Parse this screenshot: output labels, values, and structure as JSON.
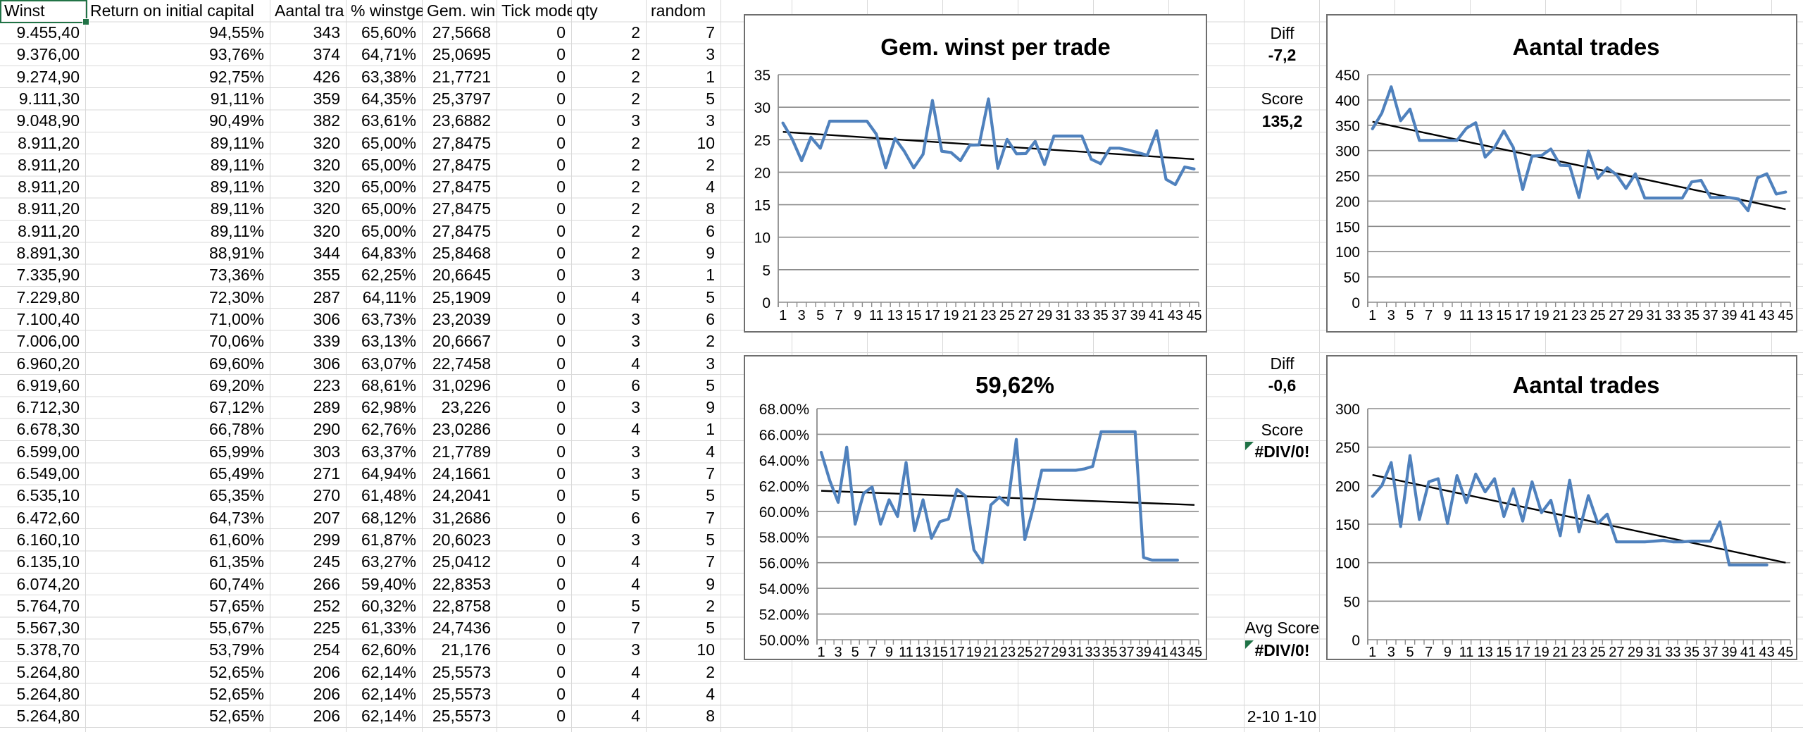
{
  "sheet": {
    "table": {
      "headers": [
        "Winst",
        "Return on initial capital",
        "Aantal tra",
        "% winstge",
        "Gem. win",
        "Tick mode",
        "qty",
        "random"
      ],
      "rows": [
        [
          "9.455,40",
          "94,55%",
          "343",
          "65,60%",
          "27,5668",
          "0",
          "2",
          "7"
        ],
        [
          "9.376,00",
          "93,76%",
          "374",
          "64,71%",
          "25,0695",
          "0",
          "2",
          "3"
        ],
        [
          "9.274,90",
          "92,75%",
          "426",
          "63,38%",
          "21,7721",
          "0",
          "2",
          "1"
        ],
        [
          "9.111,30",
          "91,11%",
          "359",
          "64,35%",
          "25,3797",
          "0",
          "2",
          "5"
        ],
        [
          "9.048,90",
          "90,49%",
          "382",
          "63,61%",
          "23,6882",
          "0",
          "3",
          "3"
        ],
        [
          "8.911,20",
          "89,11%",
          "320",
          "65,00%",
          "27,8475",
          "0",
          "2",
          "10"
        ],
        [
          "8.911,20",
          "89,11%",
          "320",
          "65,00%",
          "27,8475",
          "0",
          "2",
          "2"
        ],
        [
          "8.911,20",
          "89,11%",
          "320",
          "65,00%",
          "27,8475",
          "0",
          "2",
          "4"
        ],
        [
          "8.911,20",
          "89,11%",
          "320",
          "65,00%",
          "27,8475",
          "0",
          "2",
          "8"
        ],
        [
          "8.911,20",
          "89,11%",
          "320",
          "65,00%",
          "27,8475",
          "0",
          "2",
          "6"
        ],
        [
          "8.891,30",
          "88,91%",
          "344",
          "64,83%",
          "25,8468",
          "0",
          "2",
          "9"
        ],
        [
          "7.335,90",
          "73,36%",
          "355",
          "62,25%",
          "20,6645",
          "0",
          "3",
          "1"
        ],
        [
          "7.229,80",
          "72,30%",
          "287",
          "64,11%",
          "25,1909",
          "0",
          "4",
          "5"
        ],
        [
          "7.100,40",
          "71,00%",
          "306",
          "63,73%",
          "23,2039",
          "0",
          "3",
          "6"
        ],
        [
          "7.006,00",
          "70,06%",
          "339",
          "63,13%",
          "20,6667",
          "0",
          "3",
          "2"
        ],
        [
          "6.960,20",
          "69,60%",
          "306",
          "63,07%",
          "22,7458",
          "0",
          "4",
          "3"
        ],
        [
          "6.919,60",
          "69,20%",
          "223",
          "68,61%",
          "31,0296",
          "0",
          "6",
          "5"
        ],
        [
          "6.712,30",
          "67,12%",
          "289",
          "62,98%",
          "23,226",
          "0",
          "3",
          "9"
        ],
        [
          "6.678,30",
          "66,78%",
          "290",
          "62,76%",
          "23,0286",
          "0",
          "4",
          "1"
        ],
        [
          "6.599,00",
          "65,99%",
          "303",
          "63,37%",
          "21,7789",
          "0",
          "3",
          "4"
        ],
        [
          "6.549,00",
          "65,49%",
          "271",
          "64,94%",
          "24,1661",
          "0",
          "3",
          "7"
        ],
        [
          "6.535,10",
          "65,35%",
          "270",
          "61,48%",
          "24,2041",
          "0",
          "5",
          "5"
        ],
        [
          "6.472,60",
          "64,73%",
          "207",
          "68,12%",
          "31,2686",
          "0",
          "6",
          "7"
        ],
        [
          "6.160,10",
          "61,60%",
          "299",
          "61,87%",
          "20,6023",
          "0",
          "3",
          "5"
        ],
        [
          "6.135,10",
          "61,35%",
          "245",
          "63,27%",
          "25,0412",
          "0",
          "4",
          "7"
        ],
        [
          "6.074,20",
          "60,74%",
          "266",
          "59,40%",
          "22,8353",
          "0",
          "4",
          "9"
        ],
        [
          "5.764,70",
          "57,65%",
          "252",
          "60,32%",
          "22,8758",
          "0",
          "5",
          "2"
        ],
        [
          "5.567,30",
          "55,67%",
          "225",
          "61,33%",
          "24,7436",
          "0",
          "7",
          "5"
        ],
        [
          "5.378,70",
          "53,79%",
          "254",
          "62,60%",
          "21,176",
          "0",
          "3",
          "10"
        ],
        [
          "5.264,80",
          "52,65%",
          "206",
          "62,14%",
          "25,5573",
          "0",
          "4",
          "2"
        ],
        [
          "5.264,80",
          "52,65%",
          "206",
          "62,14%",
          "25,5573",
          "0",
          "4",
          "4"
        ],
        [
          "5.264,80",
          "52,65%",
          "206",
          "62,14%",
          "25,5573",
          "0",
          "4",
          "8"
        ]
      ]
    },
    "side_panel": {
      "diff1_label": "Diff",
      "diff1_value": "-7,2",
      "score1_label": "Score",
      "score1_value": "135,2",
      "diff2_label": "Diff",
      "diff2_value": "-0,6",
      "score2_label": "Score",
      "score2_value": "#DIV/0!",
      "avg_score_label": "Avg Score",
      "avg_score_value": "#DIV/0!",
      "footer_note": "2-10 1-10"
    }
  },
  "colors": {
    "series_blue": "#4F81BD",
    "trend_black": "#000000",
    "chart_grid": "#8c8c8c",
    "sheet_grid": "#d9d9d9",
    "selection_green": "#217346",
    "error_flag_green": "#1e7145"
  },
  "chart_data": [
    {
      "type": "line",
      "title": "Gem. winst per trade",
      "position": "top-middle",
      "ylim": [
        0,
        35
      ],
      "y_tick_values": [
        35,
        30,
        25,
        20,
        15,
        10,
        5,
        0
      ],
      "y_tick_labels": [
        "35",
        "30",
        "25",
        "20",
        "15",
        "10",
        "5",
        "0"
      ],
      "x_count": 45,
      "x_labels": [
        "1",
        "3",
        "5",
        "7",
        "9",
        "11",
        "13",
        "15",
        "17",
        "19",
        "21",
        "23",
        "25",
        "27",
        "29",
        "31",
        "33",
        "35",
        "37",
        "39",
        "41",
        "43",
        "45"
      ],
      "values": [
        27.5668,
        25.0695,
        21.7721,
        25.3797,
        23.6882,
        27.8475,
        27.8475,
        27.8475,
        27.8475,
        27.8475,
        25.8468,
        20.6645,
        25.1909,
        23.2039,
        20.6667,
        22.7458,
        31.0296,
        23.226,
        23.0286,
        21.7789,
        24.1661,
        24.2041,
        31.2686,
        20.6023,
        25.0412,
        22.8353,
        22.8758,
        24.7436,
        21.176,
        25.5573,
        25.5573,
        25.5573,
        25.5573,
        22.0,
        21.3,
        23.7,
        23.7,
        23.4,
        23.0,
        22.6,
        26.4,
        18.9,
        18.1,
        20.8,
        20.5
      ],
      "trend": {
        "start": 26.2,
        "end": 22.0
      },
      "grid": true,
      "legend": "none"
    },
    {
      "type": "line",
      "title": "Aantal trades",
      "position": "top-right",
      "ylim": [
        0,
        450
      ],
      "y_tick_values": [
        450,
        400,
        350,
        300,
        250,
        200,
        150,
        100,
        50,
        0
      ],
      "y_tick_labels": [
        "450",
        "400",
        "350",
        "300",
        "250",
        "200",
        "150",
        "100",
        "50",
        "0"
      ],
      "x_count": 45,
      "x_labels": [
        "1",
        "3",
        "5",
        "7",
        "9",
        "11",
        "13",
        "15",
        "17",
        "19",
        "21",
        "23",
        "25",
        "27",
        "29",
        "31",
        "33",
        "35",
        "37",
        "39",
        "41",
        "43",
        "45"
      ],
      "values": [
        343,
        374,
        426,
        359,
        382,
        320,
        320,
        320,
        320,
        320,
        344,
        355,
        287,
        306,
        339,
        306,
        223,
        289,
        290,
        303,
        271,
        270,
        207,
        299,
        245,
        266,
        252,
        225,
        254,
        206,
        206,
        206,
        206,
        206,
        238,
        241,
        207,
        207,
        207,
        204,
        181,
        246,
        254,
        214,
        218
      ],
      "trend": {
        "start": 357,
        "end": 184
      },
      "grid": true,
      "legend": "none"
    },
    {
      "type": "line",
      "title": "59,62%",
      "position": "bottom-middle",
      "ylim": [
        50,
        68
      ],
      "y_tick_values": [
        68,
        66,
        64,
        62,
        60,
        58,
        56,
        54,
        52,
        50
      ],
      "y_tick_labels": [
        "68.00%",
        "66.00%",
        "64.00%",
        "62.00%",
        "60.00%",
        "58.00%",
        "56.00%",
        "54.00%",
        "52.00%",
        "50.00%"
      ],
      "x_count": 45,
      "x_labels": [
        "1",
        "3",
        "5",
        "7",
        "9",
        "11",
        "13",
        "15",
        "17",
        "19",
        "21",
        "23",
        "25",
        "27",
        "29",
        "31",
        "33",
        "35",
        "37",
        "39",
        "41",
        "43",
        "45"
      ],
      "values": [
        64.6,
        62.4,
        60.7,
        65.0,
        59.0,
        61.4,
        61.9,
        59.0,
        60.9,
        59.6,
        63.8,
        58.5,
        60.9,
        57.9,
        59.2,
        59.4,
        61.7,
        61.2,
        57.0,
        56.0,
        60.5,
        61.1,
        60.5,
        65.6,
        57.8,
        60.3,
        63.2,
        63.2,
        63.2,
        63.2,
        63.2,
        63.3,
        63.5,
        66.2,
        66.2,
        66.2,
        66.2,
        66.2,
        56.4,
        56.2,
        56.2,
        56.2,
        56.2
      ],
      "trend": {
        "start": 61.6,
        "end": 60.5
      },
      "grid": true,
      "legend": "none"
    },
    {
      "type": "line",
      "title": "Aantal trades",
      "position": "bottom-right",
      "ylim": [
        0,
        300
      ],
      "y_tick_values": [
        300,
        250,
        200,
        150,
        100,
        50,
        0
      ],
      "y_tick_labels": [
        "300",
        "250",
        "200",
        "150",
        "100",
        "50",
        "0"
      ],
      "x_count": 45,
      "x_labels": [
        "1",
        "3",
        "5",
        "7",
        "9",
        "11",
        "13",
        "15",
        "17",
        "19",
        "21",
        "23",
        "25",
        "27",
        "29",
        "31",
        "33",
        "35",
        "37",
        "39",
        "41",
        "43",
        "45"
      ],
      "values": [
        186,
        200,
        230,
        147,
        239,
        156,
        205,
        209,
        151,
        213,
        178,
        215,
        192,
        209,
        160,
        196,
        154,
        205,
        165,
        181,
        135,
        207,
        140,
        187,
        151,
        163,
        127,
        127,
        127,
        127,
        128,
        129,
        127,
        127,
        128,
        128,
        128,
        153,
        97,
        97,
        97,
        97,
        97
      ],
      "trend": {
        "start": 214,
        "end": 100
      },
      "grid": true,
      "legend": "none"
    }
  ]
}
